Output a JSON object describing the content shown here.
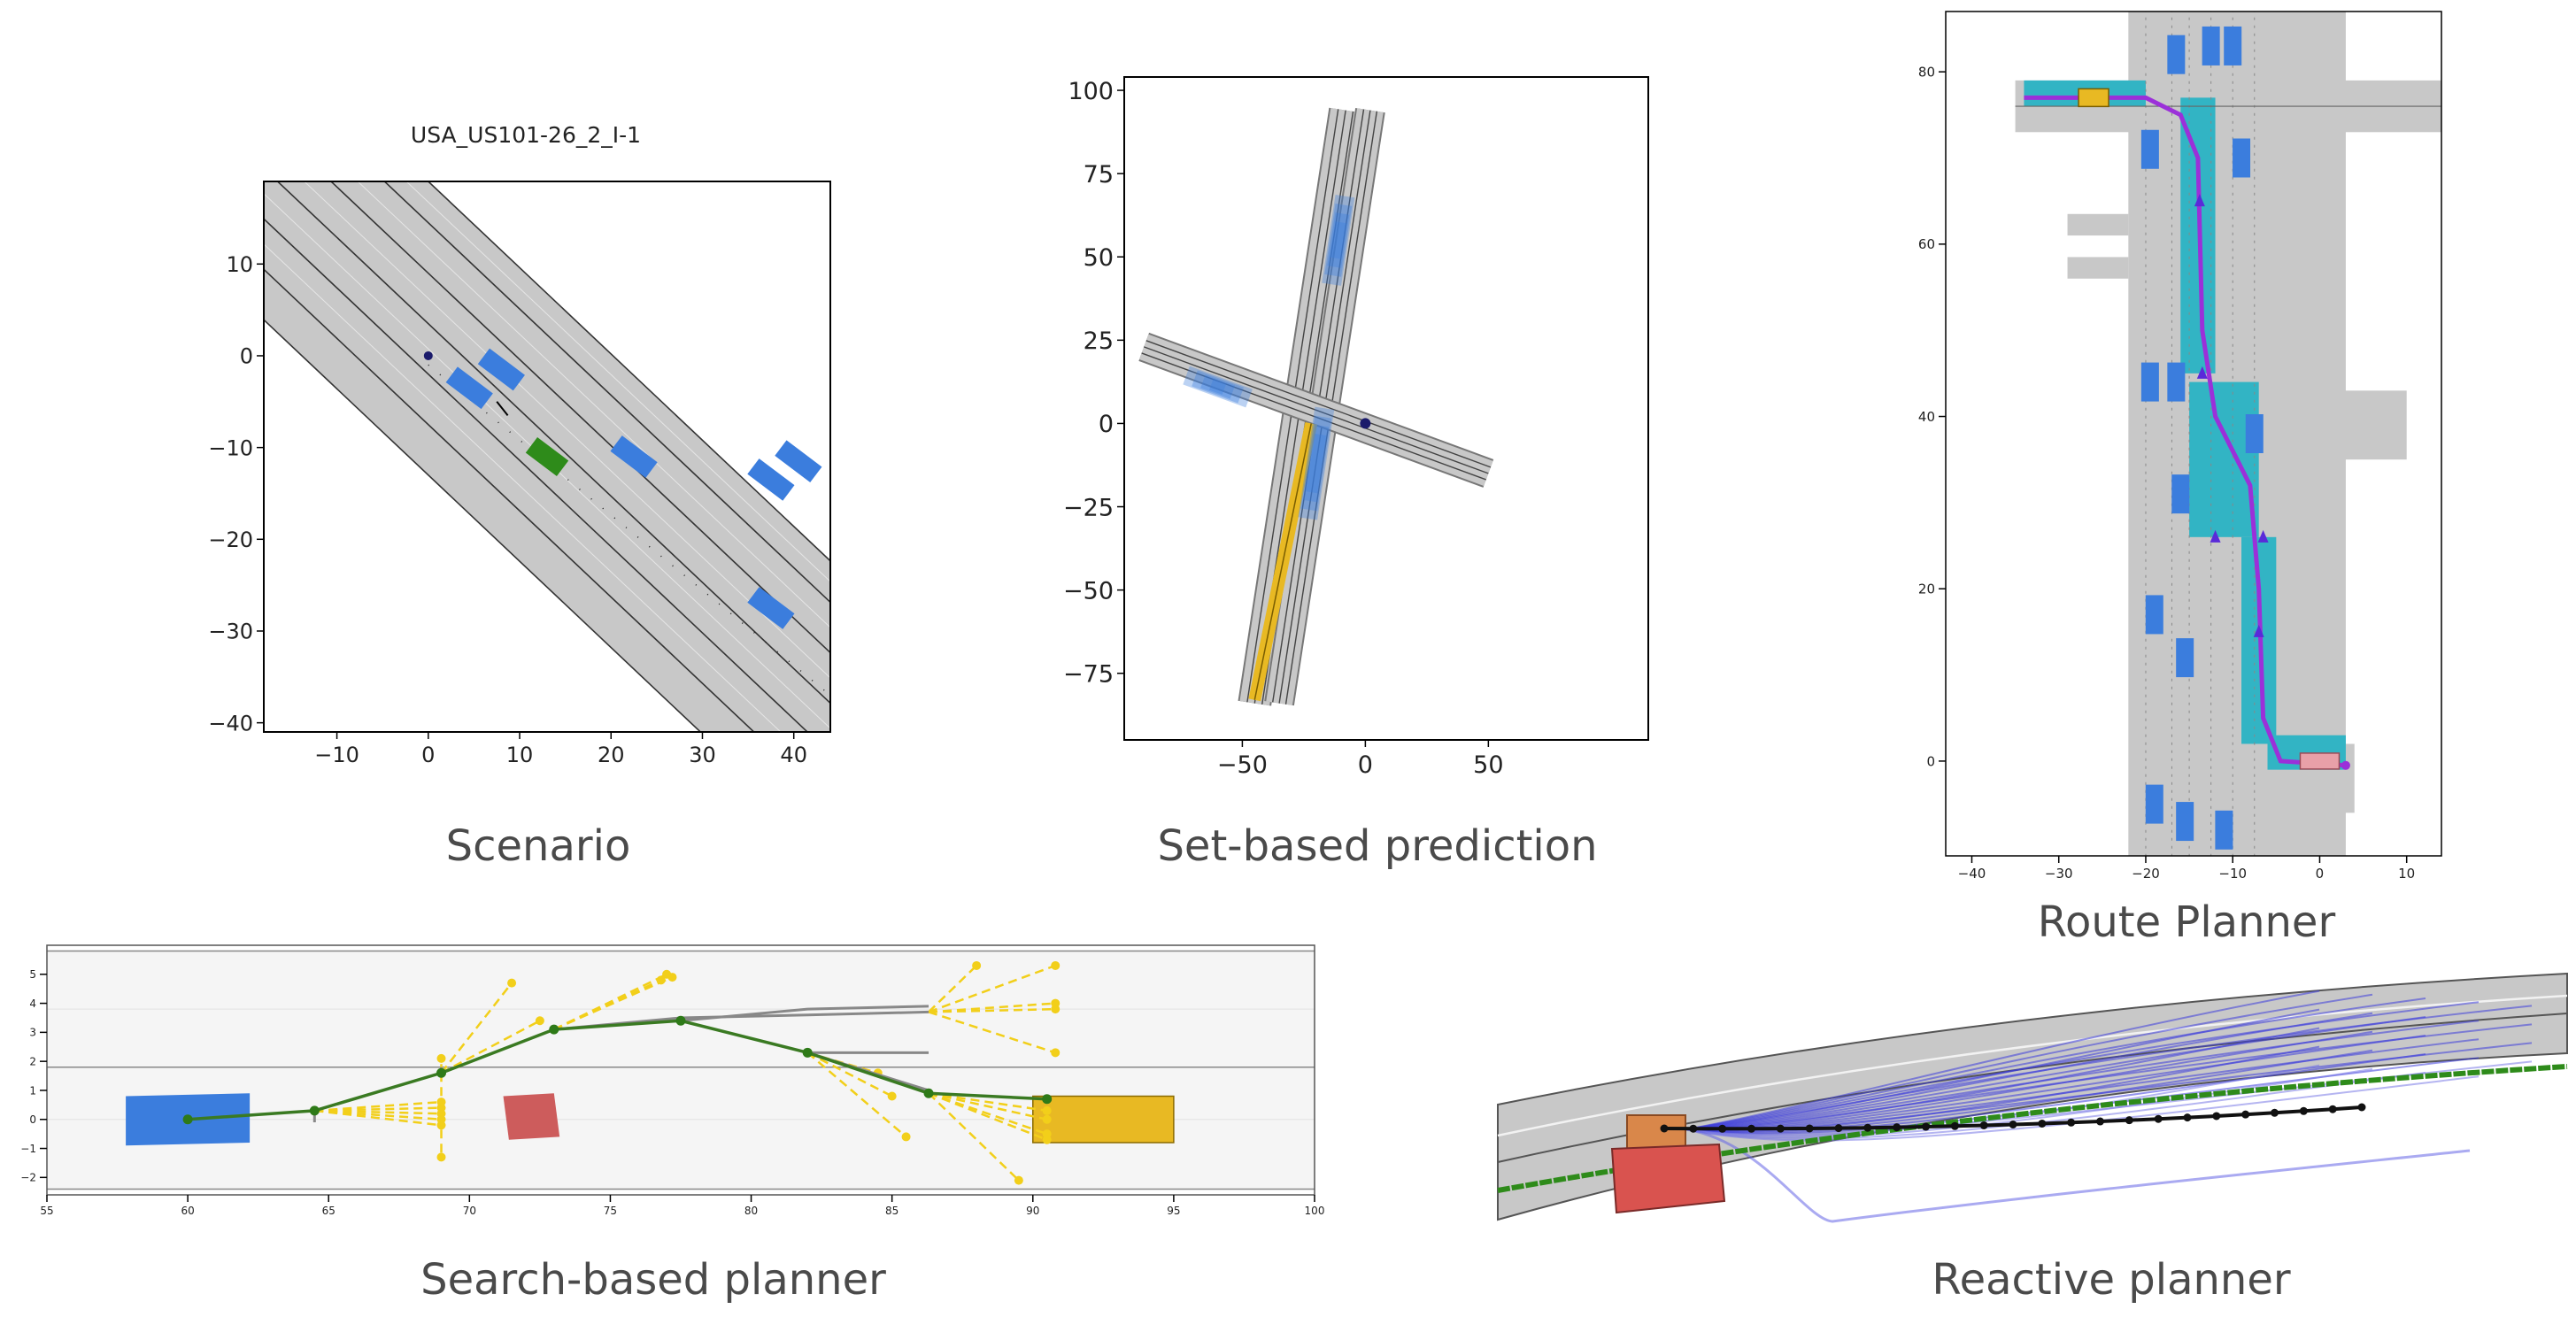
{
  "captions": {
    "scenario": "Scenario",
    "set_based": "Set-based prediction",
    "route": "Route Planner",
    "search": "Search-based planner",
    "reactive": "Reactive planner"
  },
  "colors": {
    "road": "#c8c8c8",
    "lane_line": "#3a3a3a",
    "vehicle": "#3b7ddd",
    "ego": "#2e8b1a",
    "goal": "#e8b923",
    "obstacle": "#cd5c5c",
    "route": "#9b30d9",
    "lanelet": "#32b4c4"
  },
  "chart_data": [
    {
      "id": "scenario",
      "type": "scatter",
      "title": "USA_US101-26_2_I-1",
      "xlim": [
        -18,
        44
      ],
      "ylim": [
        -41,
        19
      ],
      "xticks": [
        -10,
        0,
        10,
        20,
        30,
        40
      ],
      "yticks": [
        10,
        0,
        -10,
        -20,
        -30,
        -40
      ],
      "road": {
        "lanes": 6,
        "slope": -0.94,
        "intercepts": [
          19,
          14.5,
          9,
          3.5,
          -2,
          -7.5,
          -13
        ]
      },
      "vehicles": [
        {
          "x": 4.5,
          "y": -3.5,
          "angle": 37
        },
        {
          "x": 8,
          "y": -1.5,
          "angle": 37
        },
        {
          "x": 22.5,
          "y": -11,
          "angle": 37
        },
        {
          "x": 37.5,
          "y": -13.5,
          "angle": 37
        },
        {
          "x": 40.5,
          "y": -11.5,
          "angle": 37
        },
        {
          "x": 37.5,
          "y": -27.5,
          "angle": 37
        }
      ],
      "ego": {
        "x": 13,
        "y": -11,
        "angle": 37
      },
      "marker": {
        "x": 0,
        "y": 0
      }
    },
    {
      "id": "set_based",
      "type": "scatter",
      "xlim": [
        -98,
        115
      ],
      "ylim": [
        -95,
        104
      ],
      "xticks": [
        -50,
        0,
        50
      ],
      "yticks": [
        100,
        75,
        50,
        25,
        0,
        -25,
        -50,
        -75
      ],
      "road_a": {
        "from": [
          -45,
          -84
        ],
        "to": [
          -8,
          94
        ]
      },
      "road_b": {
        "from": [
          -90,
          23
        ],
        "to": [
          50,
          -15
        ]
      },
      "goal_strip": {
        "from": [
          -45,
          -83
        ],
        "to": [
          -22,
          0
        ]
      },
      "predictions": [
        {
          "x": -11,
          "y": 55,
          "len": 24
        },
        {
          "x": -60,
          "y": 11,
          "len": 18
        },
        {
          "x": -20,
          "y": -12,
          "len": 30
        }
      ],
      "marker": {
        "x": 0,
        "y": 0
      }
    },
    {
      "id": "route",
      "type": "line",
      "xlim": [
        -43,
        14
      ],
      "ylim": [
        -11,
        87
      ],
      "xticks": [
        -40,
        -30,
        -20,
        -10,
        0,
        10
      ],
      "yticks": [
        80,
        60,
        40,
        20,
        0
      ],
      "route": [
        [
          -34,
          77
        ],
        [
          -20,
          77
        ],
        [
          -16,
          75
        ],
        [
          -14,
          70
        ],
        [
          -13.5,
          50
        ],
        [
          -12,
          40
        ],
        [
          -8,
          32
        ],
        [
          -7,
          20
        ],
        [
          -6.5,
          5
        ],
        [
          -4.5,
          0
        ],
        [
          3,
          -0.5
        ]
      ],
      "start": {
        "x": -26,
        "y": 77
      },
      "end": {
        "x": 0,
        "y": 0
      }
    },
    {
      "id": "search",
      "type": "line",
      "xlim": [
        55,
        100
      ],
      "ylim": [
        -2.6,
        6
      ],
      "xticks": [
        55,
        60,
        65,
        70,
        75,
        80,
        85,
        90,
        95,
        100
      ],
      "yticks": [
        5,
        4,
        3,
        2,
        1,
        0,
        -1,
        -2
      ],
      "path": [
        [
          60,
          0
        ],
        [
          64.5,
          0.3
        ],
        [
          69,
          1.6
        ],
        [
          73,
          3.1
        ],
        [
          77.5,
          3.4
        ],
        [
          82,
          2.3
        ],
        [
          86.3,
          0.9
        ],
        [
          90.5,
          0.7
        ]
      ],
      "start_vehicle": {
        "x": 60,
        "y": 0
      },
      "obstacle": {
        "x": 72.2,
        "y": 0
      },
      "goal_box": {
        "x0": 90,
        "x1": 95,
        "y0": -0.8,
        "y1": 0.8
      }
    },
    {
      "id": "reactive",
      "type": "line",
      "trajectory_points": 25,
      "sampled_trajectories": 24
    }
  ]
}
